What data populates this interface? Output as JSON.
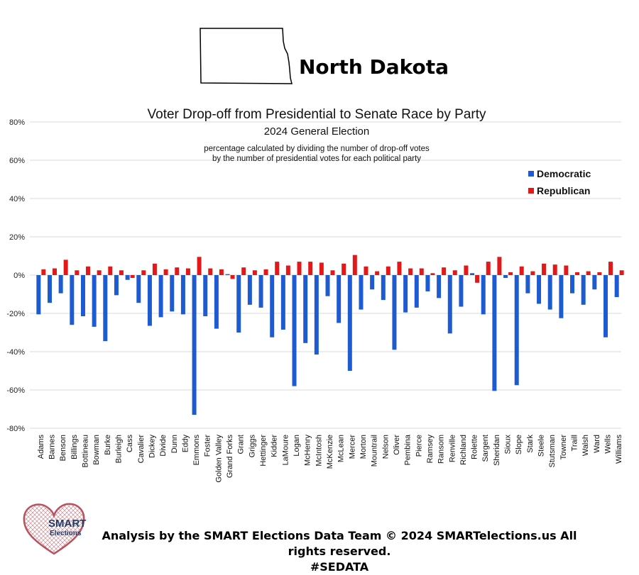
{
  "header": {
    "state_name": "North Dakota"
  },
  "chart_data": {
    "type": "bar",
    "title": "Voter Drop-off from Presidential to Senate Race by Party",
    "subtitle": "2024 General Election",
    "note_line1": "percentage calculated by dividing the number of drop-off votes",
    "note_line2": "by the number of presidential votes for each political party",
    "xlabel": "",
    "ylabel": "",
    "ylim": [
      -80,
      80
    ],
    "yticks": [
      80,
      60,
      40,
      20,
      0,
      -20,
      -40,
      -60,
      -80
    ],
    "ytick_labels": [
      "80%",
      "60%",
      "40%",
      "20%",
      "0%",
      "-20%",
      "-40%",
      "-60%",
      "-80%"
    ],
    "legend_position": "top-right",
    "categories": [
      "Adams",
      "Barnes",
      "Benson",
      "Billings",
      "Bottineau",
      "Bowman",
      "Burke",
      "Burleigh",
      "Cass",
      "Cavalier",
      "Dickey",
      "Divide",
      "Dunn",
      "Eddy",
      "Emmons",
      "Foster",
      "Golden Valley",
      "Grand Forks",
      "Grant",
      "Griggs",
      "Hettinger",
      "Kidder",
      "LaMoure",
      "Logan",
      "McHenry",
      "McIntosh",
      "McKenzie",
      "McLean",
      "Mercer",
      "Morton",
      "Mountrail",
      "Nelson",
      "Oliver",
      "Pembina",
      "Pierce",
      "Ramsey",
      "Ransom",
      "Renville",
      "Richland",
      "Rolette",
      "Sargent",
      "Sheridan",
      "Sioux",
      "Slope",
      "Stark",
      "Steele",
      "Stutsman",
      "Towner",
      "Traill",
      "Walsh",
      "Ward",
      "Wells",
      "Williams"
    ],
    "series": [
      {
        "name": "Democratic",
        "color": "#1f5bd0",
        "values": [
          -20.5,
          -14.5,
          -9.5,
          -26,
          -21.5,
          -27,
          -34.5,
          -10.5,
          -2.5,
          -14.5,
          -26.5,
          -22,
          -19,
          -20.5,
          -73,
          -21.5,
          -28,
          0.5,
          -30,
          -15.5,
          -17,
          -32.5,
          -28.5,
          -58,
          -35.5,
          -41.5,
          -11,
          -25,
          -50,
          -18,
          -7.5,
          -13,
          -39,
          -19.5,
          -17,
          -8.5,
          -12,
          -30.5,
          -16.5,
          1,
          -20.5,
          -60.5,
          -1.5,
          -57.5,
          -9.5,
          -15,
          -18,
          -22.5,
          -9.5,
          -15.5,
          -7.5,
          -32.5,
          -11.5
        ]
      },
      {
        "name": "Republican",
        "color": "#e31919",
        "values": [
          3,
          3.5,
          8,
          2.5,
          4.5,
          2.5,
          4.5,
          2.5,
          -1.5,
          2.5,
          6,
          3,
          4,
          3.5,
          9.5,
          3.5,
          3,
          -2,
          4,
          2.5,
          3,
          7,
          5,
          7,
          7,
          6.5,
          2.5,
          6,
          10.5,
          4.5,
          2,
          4.5,
          7,
          3.5,
          3.5,
          1,
          4,
          2.5,
          5,
          -4,
          7,
          9.5,
          1.5,
          4.5,
          2,
          6,
          5.5,
          5,
          1.5,
          2,
          1.5,
          7,
          2.5
        ]
      }
    ]
  },
  "footer": {
    "logo_line1": "SMART",
    "logo_line2": "Elections",
    "credit_line1": "Analysis by the SMART Elections Data Team © 2024 SMARTelections.us All rights reserved.",
    "credit_line2": "#SEDATA"
  }
}
